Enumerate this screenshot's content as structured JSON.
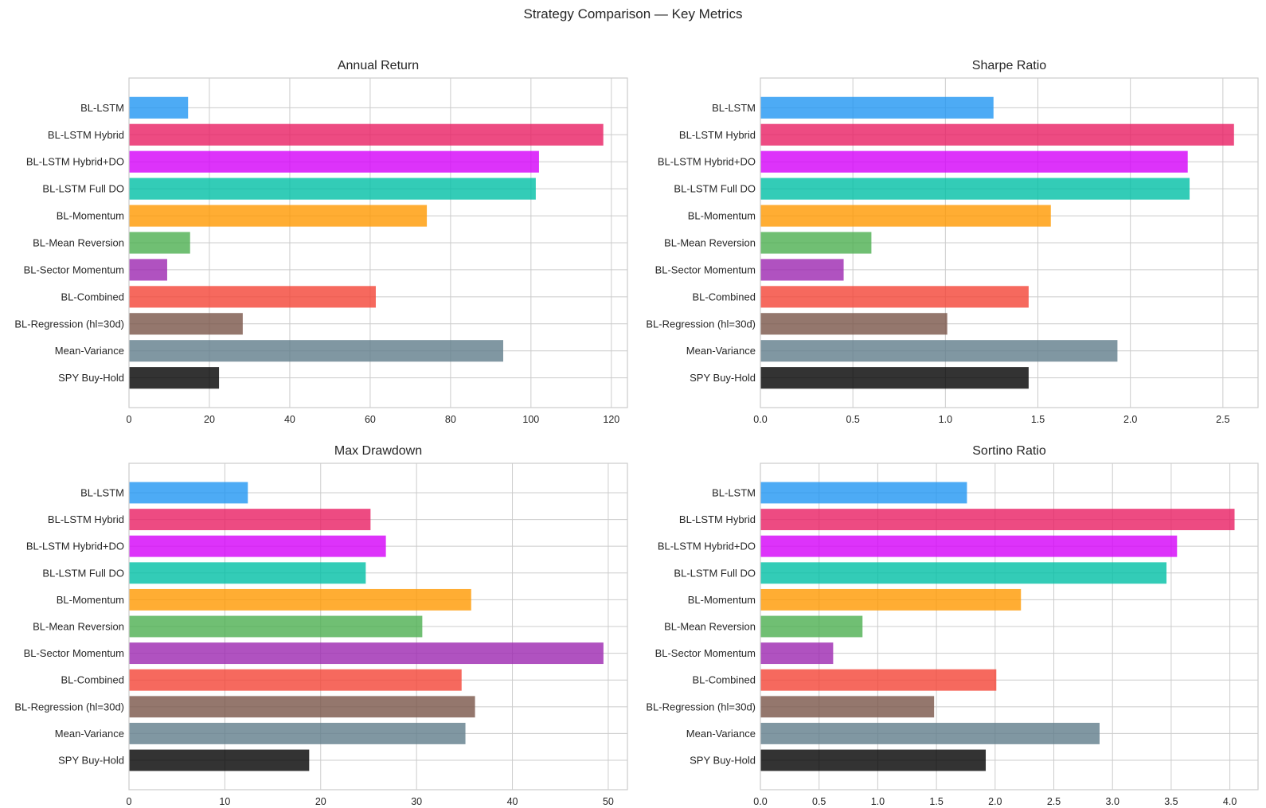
{
  "chart_data": {
    "type": "bar",
    "orientation": "horizontal",
    "title": "Strategy Comparison — Key Metrics",
    "categories": [
      "BL-LSTM",
      "BL-LSTM Hybrid",
      "BL-LSTM Hybrid+DO",
      "BL-LSTM Full DO",
      "BL-Momentum",
      "BL-Mean Reversion",
      "BL-Sector Momentum",
      "BL-Combined",
      "BL-Regression (hl=30d)",
      "Mean-Variance",
      "SPY Buy-Hold"
    ],
    "colors": [
      "#2196F3",
      "#E91E63",
      "#D500F9",
      "#00BFA5",
      "#FF9800",
      "#4CAF50",
      "#9C27B0",
      "#F44336",
      "#795548",
      "#607D8B",
      "#000000"
    ],
    "bar_alpha": 0.8,
    "grid": true,
    "panels": [
      {
        "title": "Annual Return",
        "xlabel": "",
        "xlim": [
          0,
          124
        ],
        "xticks": [
          0,
          20,
          40,
          60,
          80,
          100,
          120
        ],
        "xtick_labels": [
          "0",
          "20",
          "40",
          "60",
          "80",
          "100",
          "120"
        ],
        "values": [
          14.7,
          118.0,
          102.0,
          101.2,
          74.1,
          15.2,
          9.5,
          61.4,
          28.3,
          93.1,
          22.4
        ]
      },
      {
        "title": "Sharpe Ratio",
        "xlabel": "",
        "xlim": [
          0,
          2.69
        ],
        "xticks": [
          0,
          0.5,
          1.0,
          1.5,
          2.0,
          2.5
        ],
        "xtick_labels": [
          "0.0",
          "0.5",
          "1.0",
          "1.5",
          "2.0",
          "2.5"
        ],
        "values": [
          1.26,
          2.56,
          2.31,
          2.32,
          1.57,
          0.6,
          0.45,
          1.45,
          1.01,
          1.93,
          1.45
        ]
      },
      {
        "title": "Max Drawdown",
        "xlabel": "",
        "xlim": [
          0,
          52
        ],
        "xticks": [
          0,
          10,
          20,
          30,
          40,
          50
        ],
        "xtick_labels": [
          "0",
          "10",
          "20",
          "30",
          "40",
          "50"
        ],
        "values": [
          12.4,
          25.2,
          26.8,
          24.7,
          35.7,
          30.6,
          49.5,
          34.7,
          36.1,
          35.1,
          18.8
        ]
      },
      {
        "title": "Sortino Ratio",
        "xlabel": "",
        "xlim": [
          0,
          4.24
        ],
        "xticks": [
          0,
          0.5,
          1.0,
          1.5,
          2.0,
          2.5,
          3.0,
          3.5,
          4.0
        ],
        "xtick_labels": [
          "0.0",
          "0.5",
          "1.0",
          "1.5",
          "2.0",
          "2.5",
          "3.0",
          "3.5",
          "4.0"
        ],
        "values": [
          1.76,
          4.04,
          3.55,
          3.46,
          2.22,
          0.87,
          0.62,
          2.01,
          1.48,
          2.89,
          1.92
        ]
      }
    ]
  }
}
